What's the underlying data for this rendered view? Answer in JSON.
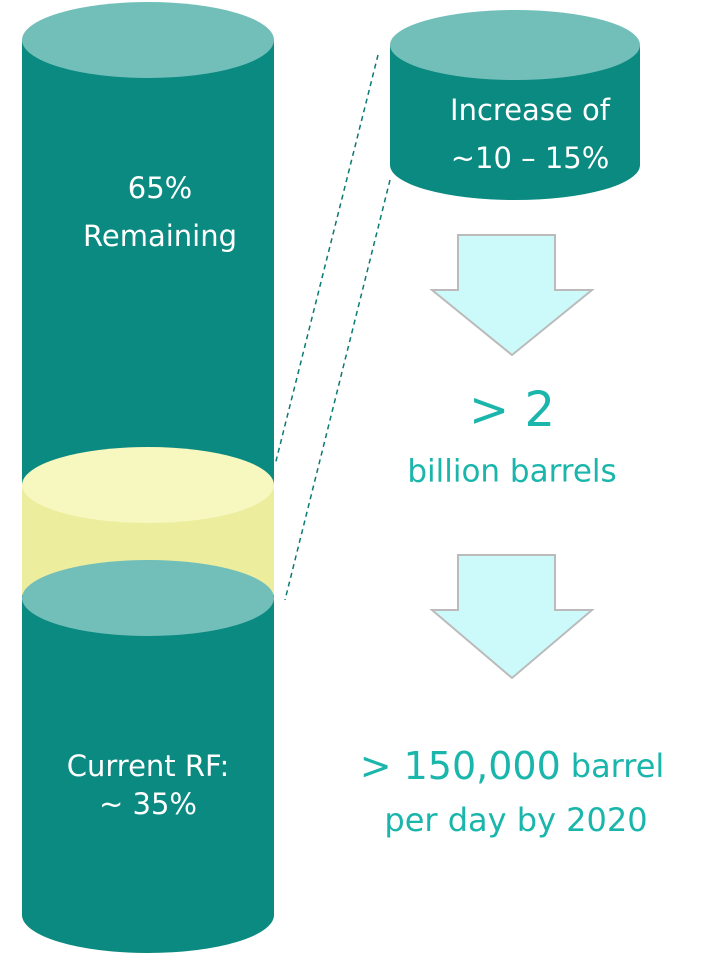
{
  "left_cylinder": {
    "top_label": [
      "65%",
      "Remaining"
    ],
    "bottom_label": [
      "Current RF:",
      "~ 35%"
    ]
  },
  "right_cylinder": {
    "label": [
      "Increase of",
      "~10 – 15%"
    ]
  },
  "result_1": {
    "value": "> 2",
    "unit": "billion barrels"
  },
  "result_2": {
    "value": "> 150,000",
    "unit": "barrel",
    "line_2": "per day by 2020"
  }
}
